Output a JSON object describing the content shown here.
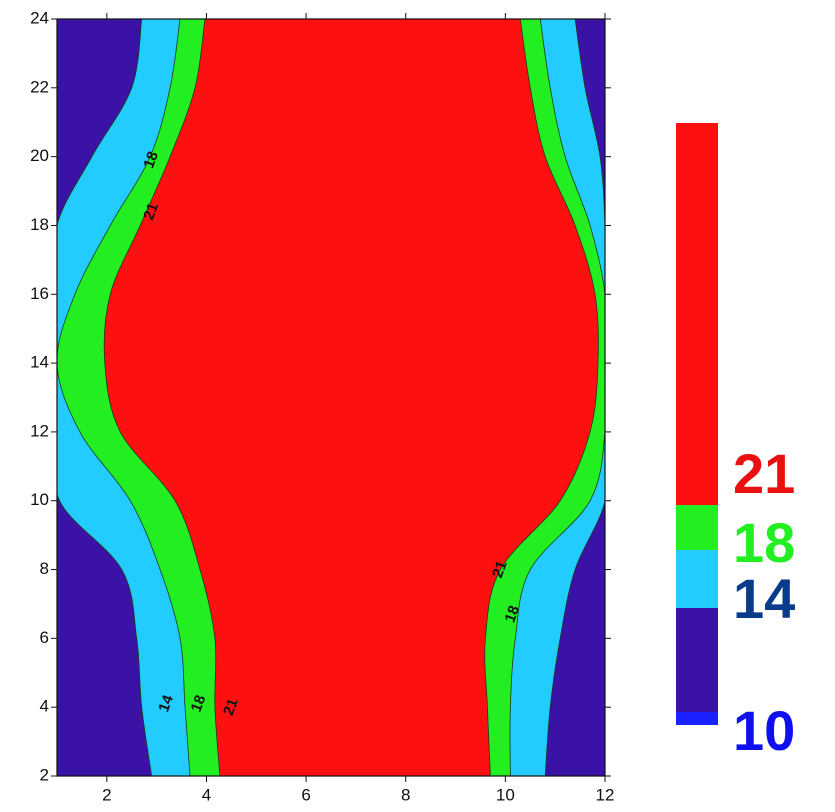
{
  "chart_data": {
    "type": "contour",
    "xlim": [
      1,
      12
    ],
    "ylim": [
      2,
      24
    ],
    "xticks": [
      2,
      4,
      6,
      8,
      10,
      12
    ],
    "yticks": [
      2,
      4,
      6,
      8,
      10,
      12,
      14,
      16,
      18,
      20,
      22,
      24
    ],
    "y": [
      2,
      4,
      6,
      8,
      10,
      12,
      14,
      16,
      18,
      20,
      22,
      24
    ],
    "boundaries": [
      {
        "level": 14,
        "left": [
          2.9,
          2.7,
          2.6,
          2.3,
          1.05,
          1,
          1,
          1,
          1,
          1.7,
          2.5,
          2.7
        ],
        "right": [
          10.8,
          10.9,
          11.1,
          11.4,
          12,
          12,
          12,
          12,
          12,
          11.9,
          11.6,
          11.4
        ]
      },
      {
        "level": 18,
        "left": [
          3.67,
          3.57,
          3.47,
          3.07,
          2.47,
          1.46,
          1,
          1.36,
          2.07,
          2.87,
          3.27,
          3.47
        ],
        "right": [
          10.1,
          10.1,
          10.2,
          10.5,
          11.7,
          12,
          12,
          12,
          11.7,
          11.2,
          10.9,
          10.7
        ]
      },
      {
        "level": 21,
        "left": [
          4.27,
          4.17,
          4.17,
          3.87,
          3.37,
          2.27,
          1.96,
          2.07,
          2.67,
          3.27,
          3.77,
          3.97
        ],
        "right": [
          9.7,
          9.64,
          9.6,
          9.9,
          11.1,
          11.7,
          11.86,
          11.8,
          11.4,
          10.8,
          10.5,
          10.3
        ]
      }
    ],
    "contour_labels": [
      {
        "label": 18,
        "x": 2.9,
        "y": 19.9
      },
      {
        "label": 21,
        "x": 2.9,
        "y": 18.4
      },
      {
        "label": 21,
        "x": 9.9,
        "y": 8
      },
      {
        "label": 18,
        "x": 10.15,
        "y": 6.7
      },
      {
        "label": 14,
        "x": 3.2,
        "y": 4.1
      },
      {
        "label": 18,
        "x": 3.85,
        "y": 4.1
      },
      {
        "label": 21,
        "x": 4.5,
        "y": 4.0
      }
    ],
    "bands": [
      {
        "color": "#1a22ff"
      },
      {
        "color": "#3a12a6"
      },
      {
        "color": "#22ccff"
      },
      {
        "color": "#22ee22"
      },
      {
        "color": "#ff1010"
      }
    ],
    "colorbar_labels": [
      {
        "value": 21,
        "color": "#e81010"
      },
      {
        "value": 18,
        "color": "#22ee22"
      },
      {
        "value": 14,
        "color": "#0a3a8a"
      },
      {
        "value": 10,
        "color": "#1010ee"
      }
    ]
  }
}
